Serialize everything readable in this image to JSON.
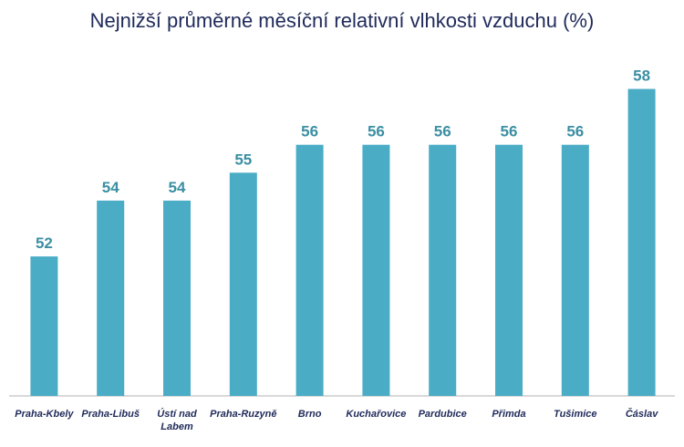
{
  "chart_data": {
    "type": "bar",
    "title": "Nejnižší průměrné měsíční relativní vlhkosti vzduchu (%)",
    "categories": [
      "Praha-Kbely",
      "Praha-Libuš",
      "Ústí nad Labem",
      "Praha-Ruzyně",
      "Brno",
      "Kuchařovice",
      "Pardubice",
      "Přimda",
      "Tušimice",
      "Čáslav"
    ],
    "category_lines": [
      [
        "Praha-Kbely"
      ],
      [
        "Praha-Libuš"
      ],
      [
        "Ústí nad",
        "Labem"
      ],
      [
        "Praha-Ruzyně"
      ],
      [
        "Brno"
      ],
      [
        "Kuchařovice"
      ],
      [
        "Pardubice"
      ],
      [
        "Přimda"
      ],
      [
        "Tušimice"
      ],
      [
        "Čáslav"
      ]
    ],
    "values": [
      52,
      54,
      54,
      55,
      56,
      56,
      56,
      56,
      56,
      58
    ],
    "ylim": [
      47,
      58.9
    ],
    "bar_color": "#4bacc6",
    "label_color": "#3b8fa3",
    "grid": false
  }
}
